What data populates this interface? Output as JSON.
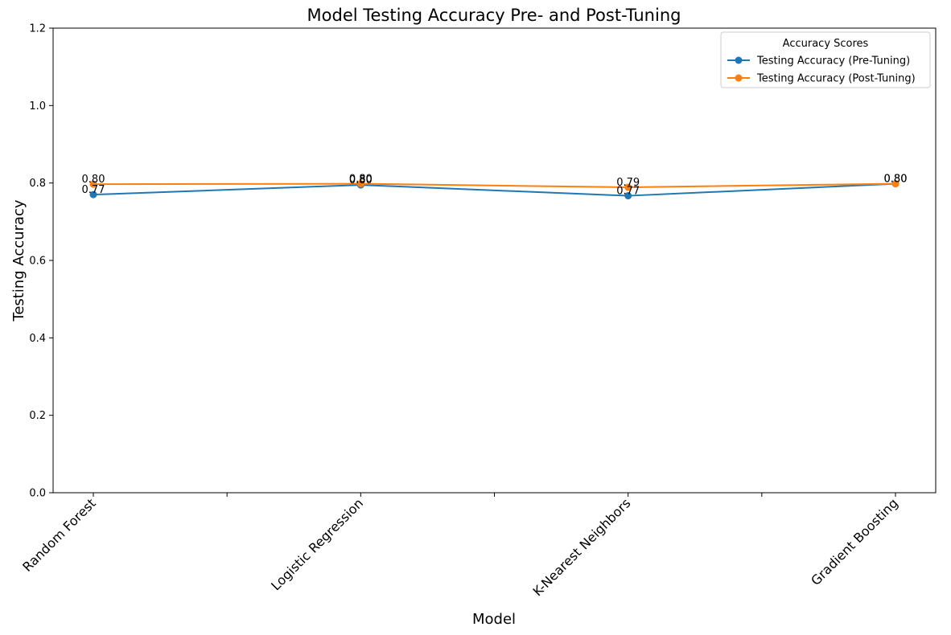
{
  "chart_data": {
    "type": "line",
    "title": "Model Testing Accuracy Pre- and Post-Tuning",
    "xlabel": "Model",
    "ylabel": "Testing Accuracy",
    "ylim": [
      0,
      1.2
    ],
    "yticks": [
      0.0,
      0.2,
      0.4,
      0.6,
      0.8,
      1.0,
      1.2
    ],
    "ytick_labels": [
      "0.0",
      "0.2",
      "0.4",
      "0.6",
      "0.8",
      "1.0",
      "1.2"
    ],
    "categories": [
      "Random Forest",
      "Logistic Regression",
      "K-Nearest Neighbors",
      "Gradient Boosting"
    ],
    "grid": false,
    "legend": {
      "title": "Accuracy Scores",
      "placement": "top-right"
    },
    "series": [
      {
        "name": "Testing Accuracy (Pre-Tuning)",
        "color": "#1f77b4",
        "values": [
          0.77,
          0.795,
          0.767,
          0.798
        ],
        "labels": [
          "0.77",
          "0.80",
          "0.77",
          "0.80"
        ]
      },
      {
        "name": "Testing Accuracy (Post-Tuning)",
        "color": "#ff7f0e",
        "values": [
          0.797,
          0.798,
          0.789,
          0.798
        ],
        "labels": [
          "0.80",
          "0.80",
          "0.79",
          "0.80"
        ]
      }
    ]
  }
}
